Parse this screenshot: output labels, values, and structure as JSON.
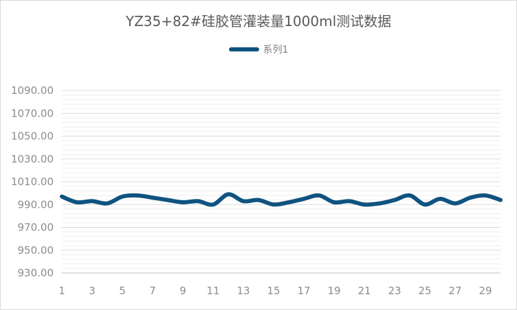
{
  "chart_data": {
    "type": "line",
    "title": "YZ35+82#硅胶管灌装量1000ml测试数据",
    "xlabel": "",
    "ylabel": "",
    "ylim": [
      930,
      1090
    ],
    "y_ticks": [
      "930.00",
      "950.00",
      "970.00",
      "990.00",
      "1010.00",
      "1030.00",
      "1050.00",
      "1070.00",
      "1090.00"
    ],
    "x": [
      1,
      2,
      3,
      4,
      5,
      6,
      7,
      8,
      9,
      10,
      11,
      12,
      13,
      14,
      15,
      16,
      17,
      18,
      19,
      20,
      21,
      22,
      23,
      24,
      25,
      26,
      27,
      28,
      29,
      30
    ],
    "x_tick_labels": [
      "1",
      "3",
      "5",
      "7",
      "9",
      "11",
      "13",
      "15",
      "17",
      "19",
      "21",
      "23",
      "25",
      "27",
      "29"
    ],
    "series": [
      {
        "name": "系列1",
        "color": "#0f5380",
        "values": [
          997,
          992,
          993,
          991,
          997,
          998,
          996,
          994,
          992,
          993,
          990,
          999,
          993,
          994,
          990,
          992,
          995,
          998,
          992,
          993,
          990,
          991,
          994,
          998,
          990,
          995,
          991,
          996,
          998,
          994
        ]
      }
    ],
    "grid": "horizontal major and minor",
    "legend_position": "top"
  }
}
